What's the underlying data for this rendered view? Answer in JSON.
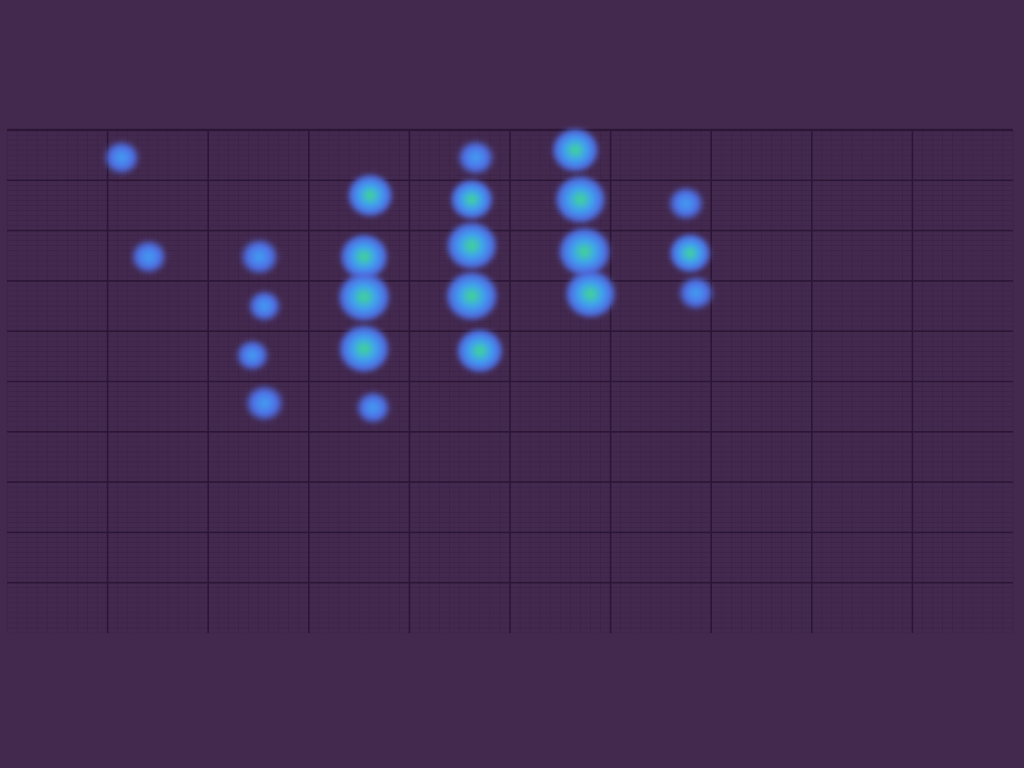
{
  "colors": {
    "background": "#44294f",
    "grid_major": "#2b1636",
    "grid_minor": "#3b2347",
    "heat_low": "#4f6fe6",
    "heat_mid": "#3fa0f2",
    "heat_high": "#3fd98c"
  },
  "chart_data": {
    "type": "heatmap",
    "title": "",
    "xlabel": "",
    "ylabel": "",
    "x_cells": 10,
    "y_cells": 10,
    "xlim": [
      0,
      10
    ],
    "ylim": [
      0,
      10
    ],
    "grid": true,
    "minor_grid": true,
    "points": [
      {
        "x": 1.14,
        "y": 0.55,
        "intensity": 0.35
      },
      {
        "x": 1.41,
        "y": 2.52,
        "intensity": 0.35
      },
      {
        "x": 2.51,
        "y": 2.52,
        "intensity": 0.45
      },
      {
        "x": 2.56,
        "y": 3.5,
        "intensity": 0.25
      },
      {
        "x": 2.44,
        "y": 4.48,
        "intensity": 0.25
      },
      {
        "x": 2.56,
        "y": 5.43,
        "intensity": 0.45
      },
      {
        "x": 3.61,
        "y": 1.3,
        "intensity": 0.7
      },
      {
        "x": 3.55,
        "y": 2.52,
        "intensity": 0.8
      },
      {
        "x": 3.55,
        "y": 3.32,
        "intensity": 0.95
      },
      {
        "x": 3.55,
        "y": 4.35,
        "intensity": 0.9
      },
      {
        "x": 3.64,
        "y": 5.52,
        "intensity": 0.3
      },
      {
        "x": 4.66,
        "y": 0.55,
        "intensity": 0.4
      },
      {
        "x": 4.62,
        "y": 1.38,
        "intensity": 0.6
      },
      {
        "x": 4.62,
        "y": 2.3,
        "intensity": 0.9
      },
      {
        "x": 4.62,
        "y": 3.3,
        "intensity": 0.95
      },
      {
        "x": 4.7,
        "y": 4.39,
        "intensity": 0.75
      },
      {
        "x": 5.65,
        "y": 0.4,
        "intensity": 0.75
      },
      {
        "x": 5.7,
        "y": 1.38,
        "intensity": 0.9
      },
      {
        "x": 5.74,
        "y": 2.42,
        "intensity": 0.95
      },
      {
        "x": 5.8,
        "y": 3.26,
        "intensity": 0.9
      },
      {
        "x": 6.75,
        "y": 1.46,
        "intensity": 0.35
      },
      {
        "x": 6.79,
        "y": 2.45,
        "intensity": 0.55
      },
      {
        "x": 6.85,
        "y": 3.24,
        "intensity": 0.35
      }
    ]
  }
}
